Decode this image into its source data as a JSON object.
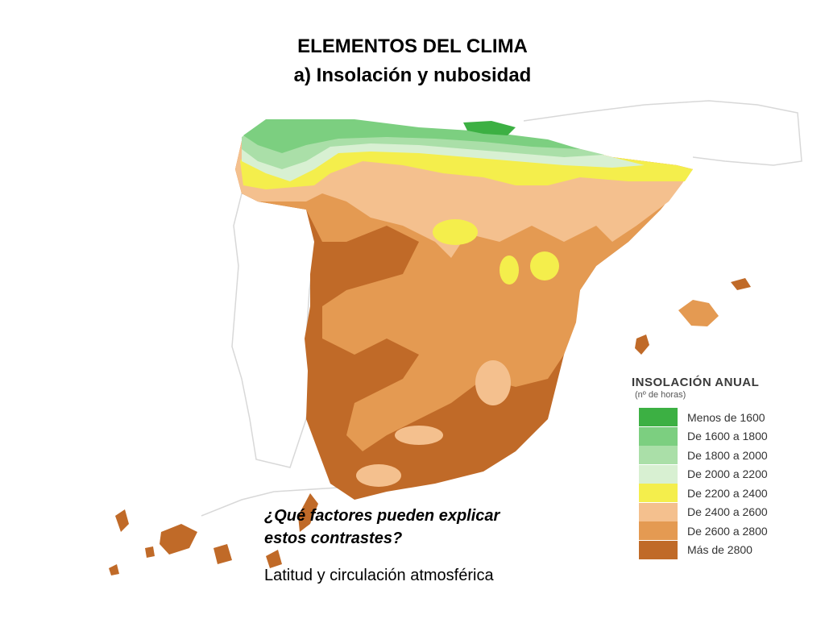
{
  "slide": {
    "title_line1": "ELEMENTOS DEL CLIMA",
    "title_line2": "a) Insolación y nubosidad",
    "question_line1": "¿Qué factores pueden explicar",
    "question_line2": "estos contrastes?",
    "answer": "Latitud y circulación atmosférica"
  },
  "legend": {
    "title": "INSOLACIÓN ANUAL",
    "subtitle": "(nº de horas)",
    "items": [
      {
        "label": "Menos de 1600",
        "color": "#3cb043"
      },
      {
        "label": "De 1600 a 1800",
        "color": "#7ccf80"
      },
      {
        "label": "De 1800 a 2000",
        "color": "#aadfa8"
      },
      {
        "label": "De 2000 a 2200",
        "color": "#d8f0d2"
      },
      {
        "label": "De 2200 a 2400",
        "color": "#f4ee4c"
      },
      {
        "label": "De 2400 a 2600",
        "color": "#f4c08e"
      },
      {
        "label": "De 2600 a 2800",
        "color": "#e49a52"
      },
      {
        "label": "Más de 2800",
        "color": "#c06a28"
      }
    ]
  }
}
